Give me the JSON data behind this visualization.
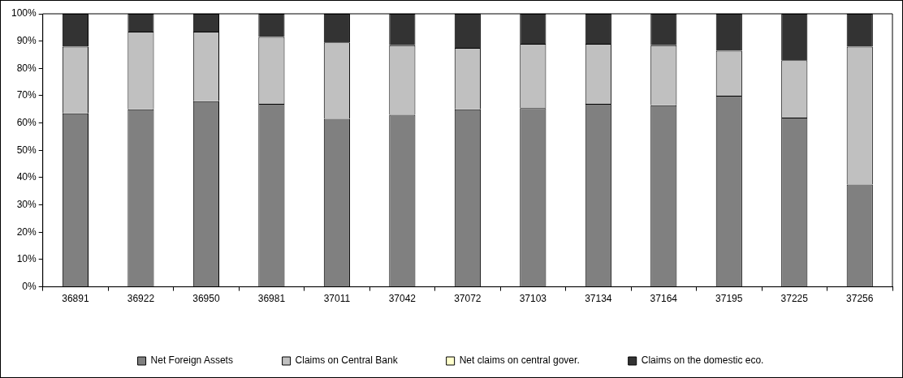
{
  "chart_data": {
    "type": "bar",
    "stacked": true,
    "categories": [
      "36891",
      "36922",
      "36950",
      "36981",
      "37011",
      "37042",
      "37072",
      "37103",
      "37134",
      "37164",
      "37195",
      "37225",
      "37256"
    ],
    "series": [
      {
        "name": "Net Foreign Assets",
        "color": "#808080",
        "values": [
          63.5,
          65,
          68,
          67,
          61.5,
          63,
          65,
          65.5,
          67,
          66.5,
          70,
          62,
          37.5
        ]
      },
      {
        "name": "Claims on Central Bank",
        "color": "#c0c0c0",
        "values": [
          24.5,
          28.5,
          25.5,
          24.5,
          28,
          25.5,
          22.5,
          23.5,
          22,
          22,
          16.5,
          21,
          50.5
        ]
      },
      {
        "name": "Net claims on central gover.",
        "color": "#ffffcc",
        "values": [
          0,
          0,
          0,
          0,
          0,
          0,
          0,
          0,
          0,
          0,
          0,
          0,
          0
        ]
      },
      {
        "name": "Claims on the domestic eco.",
        "color": "#333333",
        "values": [
          12,
          6.5,
          6.5,
          8.5,
          10.5,
          11.5,
          12.5,
          11,
          11,
          11.5,
          13.5,
          17,
          12
        ]
      }
    ],
    "ylim": [
      0,
      100
    ],
    "yticks": [
      {
        "value": 0,
        "label": "0%"
      },
      {
        "value": 10,
        "label": "10%"
      },
      {
        "value": 20,
        "label": "20%"
      },
      {
        "value": 30,
        "label": "30%"
      },
      {
        "value": 40,
        "label": "40%"
      },
      {
        "value": 50,
        "label": "50%"
      },
      {
        "value": 60,
        "label": "60%"
      },
      {
        "value": 70,
        "label": "70%"
      },
      {
        "value": 80,
        "label": "80%"
      },
      {
        "value": 90,
        "label": "90%"
      },
      {
        "value": 100,
        "label": "100%"
      }
    ],
    "grid": false,
    "legend": "bottom"
  }
}
